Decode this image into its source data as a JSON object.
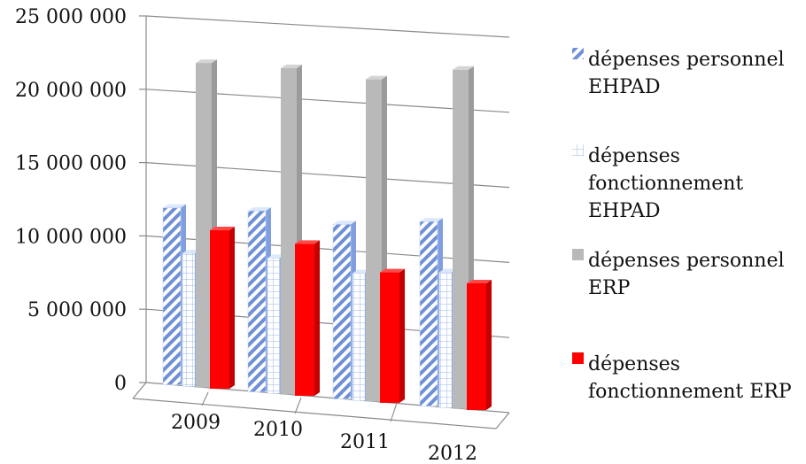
{
  "chart_data": {
    "type": "bar",
    "categories": [
      "2009",
      "2010",
      "2011",
      "2012"
    ],
    "series": [
      {
        "name": "dépenses personnel EHPAD",
        "values": [
          12000000,
          12200000,
          11700000,
          12300000
        ],
        "color": "#6f8fd6",
        "pattern": "diagonal-hatch"
      },
      {
        "name": "dépenses fonctionnement EHPAD",
        "values": [
          9000000,
          9100000,
          8500000,
          9000000
        ],
        "color": "#9bb7e6",
        "pattern": "grid"
      },
      {
        "name": "dépenses personnel ERP",
        "values": [
          22000000,
          22000000,
          21600000,
          22600000
        ],
        "color": "#b9b9b9",
        "pattern": "solid"
      },
      {
        "name": "dépenses fonctionnement ERP",
        "values": [
          10700000,
          10200000,
          8700000,
          8400000
        ],
        "color": "#ff0000",
        "pattern": "solid"
      }
    ],
    "ylim": [
      0,
      25000000
    ],
    "y_ticks": [
      0,
      5000000,
      10000000,
      15000000,
      20000000,
      25000000
    ],
    "y_tick_labels": [
      "0",
      "5 000 000",
      "10 000 000",
      "15 000 000",
      "20 000 000",
      "25 000 000"
    ],
    "legend_position": "right",
    "grid": true
  },
  "legend": {
    "items": [
      {
        "lines": [
          "dépenses personnel",
          "EHPAD"
        ]
      },
      {
        "lines": [
          "dépenses",
          "fonctionnement",
          "EHPAD"
        ]
      },
      {
        "lines": [
          "dépenses personnel",
          "ERP"
        ]
      },
      {
        "lines": [
          "dépenses",
          "fonctionnement ERP"
        ]
      }
    ]
  }
}
